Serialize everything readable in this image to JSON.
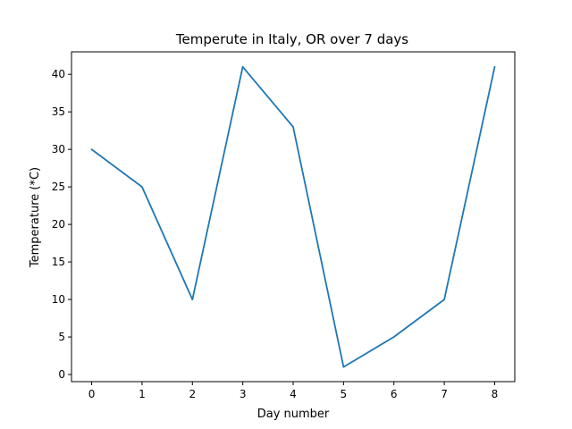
{
  "chart_data": {
    "type": "line",
    "title": "Temperute in Italy, OR over 7 days",
    "xlabel": "Day number",
    "ylabel": "Temperature (*C)",
    "x": [
      0,
      1,
      2,
      3,
      4,
      5,
      6,
      7,
      8
    ],
    "series": [
      {
        "values": [
          30,
          25,
          10,
          41,
          33,
          1,
          5,
          10,
          41
        ],
        "color": "#1f77b4"
      }
    ],
    "xlim": [
      -0.4,
      8.4
    ],
    "ylim": [
      -0.95,
      43.0
    ],
    "xticks": [
      0,
      1,
      2,
      3,
      4,
      5,
      6,
      7,
      8
    ],
    "yticks": [
      0,
      5,
      10,
      15,
      20,
      25,
      30,
      35,
      40
    ],
    "grid": false,
    "legend": "none"
  }
}
